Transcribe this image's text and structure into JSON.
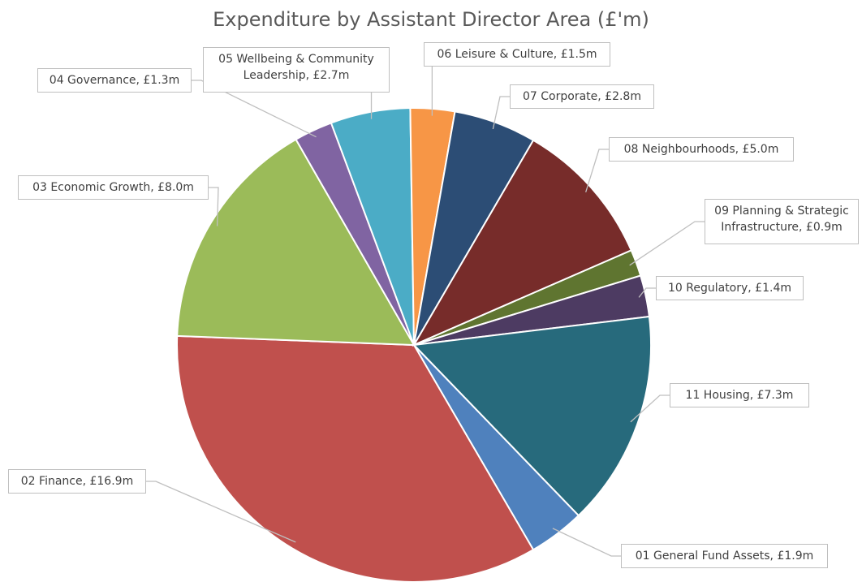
{
  "chart_data": {
    "type": "pie",
    "title": "Expenditure by Assistant Director Area (£'m)",
    "labels": [
      "01 General Fund Assets, £1.9m",
      "02 Finance, £16.9m",
      "03 Economic Growth, £8.0m",
      "04 Governance, £1.3m",
      "05 Wellbeing & Community Leadership, £2.7m",
      "06 Leisure & Culture, £1.5m",
      "07 Corporate, £2.8m",
      "08 Neighbourhoods, £5.0m",
      "09 Planning & Strategic Infrastructure, £0.9m",
      "10 Regulatory, £1.4m",
      "11 Housing, £7.3m"
    ],
    "values": [
      1.9,
      16.9,
      8.0,
      1.3,
      2.7,
      1.5,
      2.8,
      5.0,
      0.9,
      1.4,
      7.3
    ],
    "colors": [
      "#4f81bd",
      "#c0504d",
      "#9bbb59",
      "#8064a2",
      "#4bacc6",
      "#f79646",
      "#2c4d75",
      "#772c2a",
      "#5f7530",
      "#4d3b62",
      "#276a7c"
    ]
  }
}
